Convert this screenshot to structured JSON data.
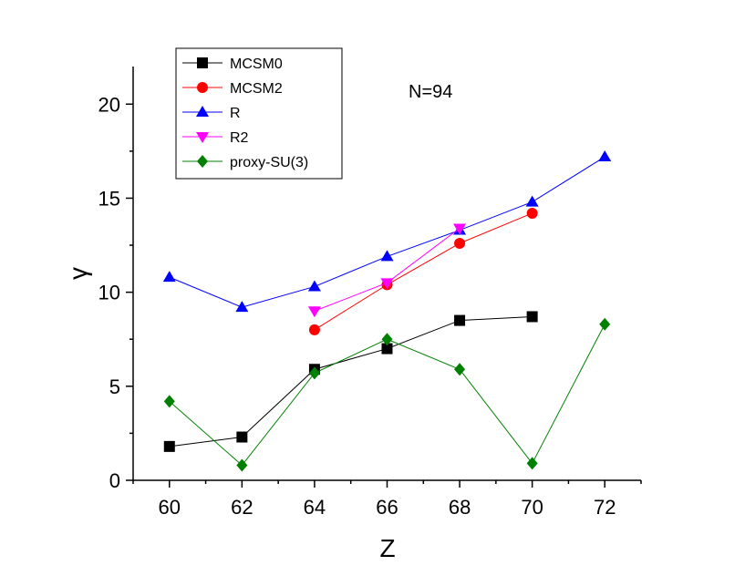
{
  "chart_data": {
    "type": "line",
    "title": "",
    "xlabel": "Z",
    "ylabel": "γ",
    "xlim": [
      59,
      73
    ],
    "ylim": [
      0,
      22
    ],
    "x_ticks": [
      60,
      62,
      64,
      66,
      68,
      70,
      72
    ],
    "x_tick_labels": [
      "60",
      "62",
      "64",
      "66",
      "68",
      "70",
      "72"
    ],
    "y_ticks": [
      0,
      5,
      10,
      15,
      20
    ],
    "y_tick_labels": [
      "0",
      "5",
      "10",
      "15",
      "20"
    ],
    "grid": false,
    "legend_position": "top-left",
    "annotation": "N=94",
    "series": [
      {
        "name": "MCSM0",
        "color": "#000000",
        "marker": "square",
        "x": [
          60,
          62,
          64,
          66,
          68,
          70
        ],
        "y": [
          1.8,
          2.3,
          5.9,
          7.0,
          8.5,
          8.7
        ]
      },
      {
        "name": "MCSM2",
        "color": "#ff0000",
        "marker": "circle",
        "x": [
          64,
          66,
          68,
          70
        ],
        "y": [
          8.0,
          10.4,
          12.6,
          14.2
        ]
      },
      {
        "name": "R",
        "color": "#0000ff",
        "marker": "triangle-up",
        "x": [
          60,
          62,
          64,
          66,
          68,
          70,
          72
        ],
        "y": [
          10.8,
          9.2,
          10.3,
          11.9,
          13.3,
          14.8,
          17.2
        ]
      },
      {
        "name": "R2",
        "color": "#ff00ff",
        "marker": "triangle-down",
        "x": [
          64,
          66,
          68
        ],
        "y": [
          9.0,
          10.5,
          13.4
        ]
      },
      {
        "name": "proxy-SU(3)",
        "color": "#008000",
        "marker": "diamond",
        "x": [
          60,
          62,
          64,
          66,
          68,
          70,
          72
        ],
        "y": [
          4.2,
          0.8,
          5.7,
          7.5,
          5.9,
          0.9,
          8.3
        ]
      }
    ]
  }
}
